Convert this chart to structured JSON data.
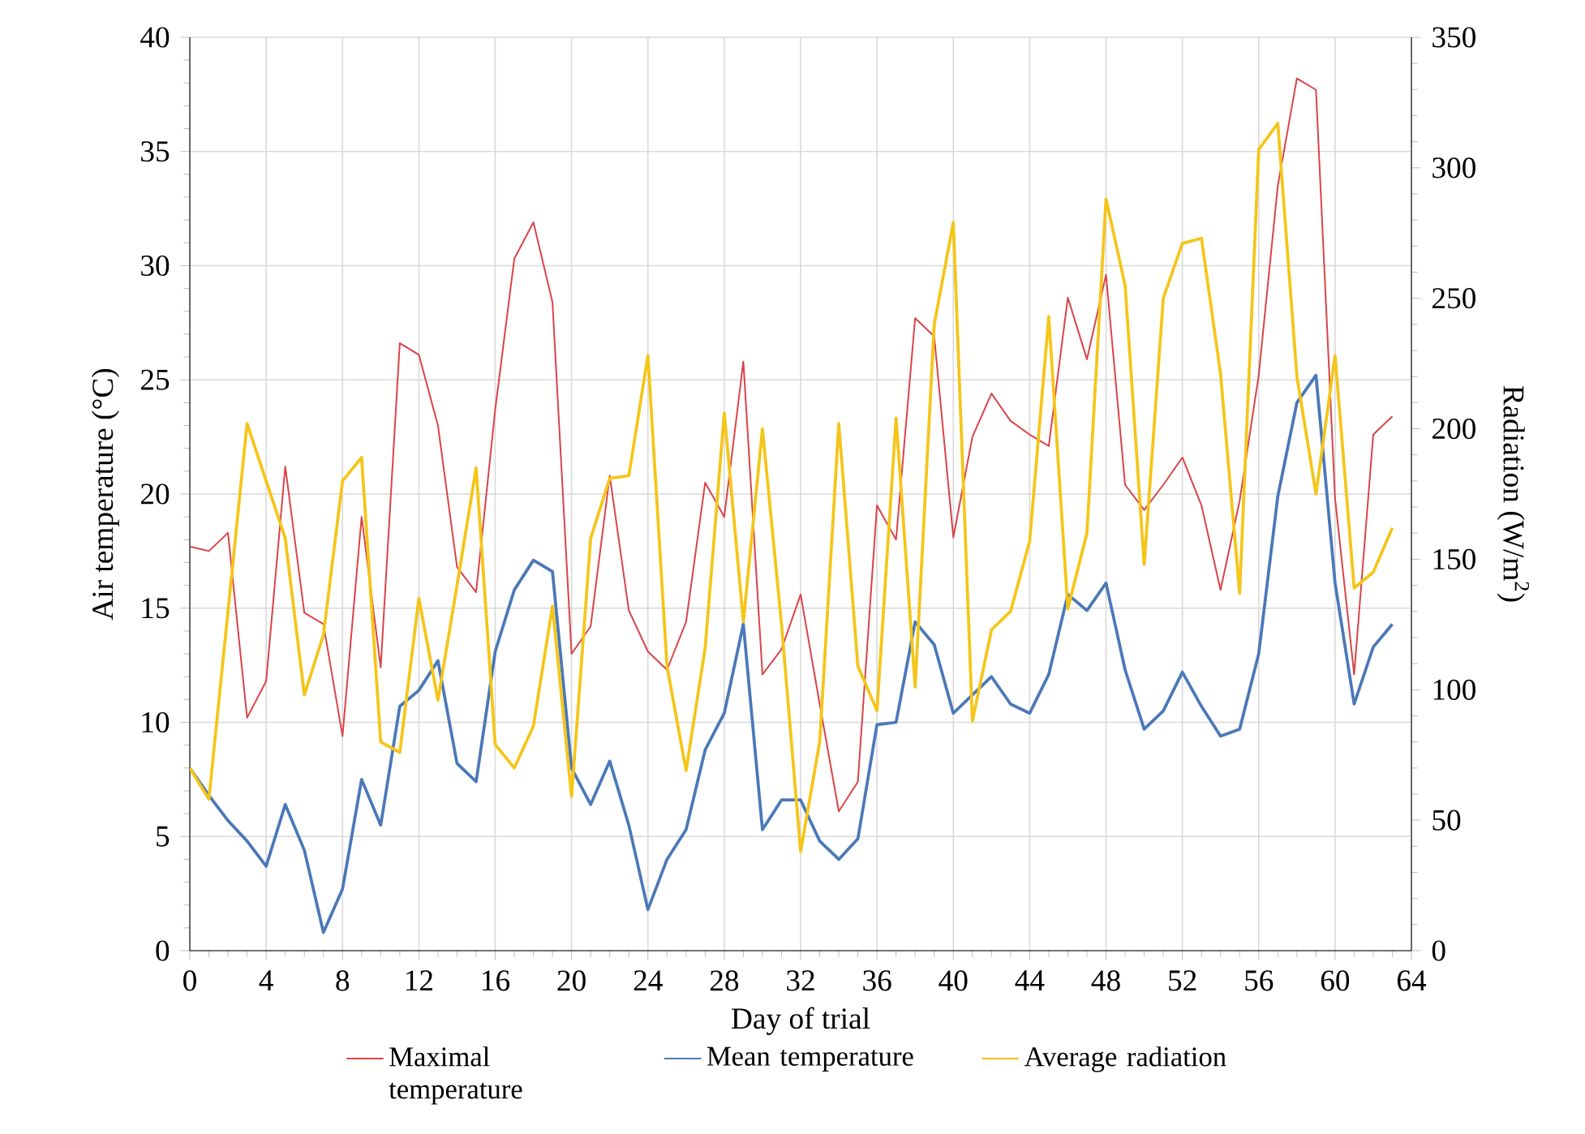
{
  "chart_data": {
    "type": "line",
    "xlabel": "Day of trial",
    "ylabel": "Air temperature (°C)",
    "y2label": "Radiation (W/m$^{2}$)",
    "x": [
      0,
      1,
      2,
      3,
      4,
      5,
      6,
      7,
      8,
      9,
      10,
      11,
      12,
      13,
      14,
      15,
      16,
      17,
      18,
      19,
      20,
      21,
      22,
      23,
      24,
      25,
      26,
      27,
      28,
      29,
      30,
      31,
      32,
      33,
      34,
      35,
      36,
      37,
      38,
      39,
      40,
      41,
      42,
      43,
      44,
      45,
      46,
      47,
      48,
      49,
      50,
      51,
      52,
      53,
      54,
      55,
      56,
      57,
      58,
      59,
      60,
      61,
      62,
      63
    ],
    "series": [
      {
        "name": "Maximal temperature",
        "color": "#d9444a",
        "values": [
          17.7,
          17.5,
          18.3,
          10.2,
          11.8,
          21.2,
          14.8,
          14.3,
          9.4,
          19.0,
          12.4,
          26.6,
          26.1,
          23.0,
          16.8,
          15.7,
          23.7,
          30.3,
          31.9,
          28.4,
          13.0,
          14.2,
          20.8,
          14.9,
          13.1,
          12.3,
          14.4,
          20.5,
          19.0,
          25.8,
          12.1,
          13.2,
          15.6,
          10.8,
          6.1,
          7.4,
          19.5,
          18.0,
          27.7,
          26.9,
          18.1,
          22.5,
          24.4,
          23.2,
          22.6,
          22.1,
          28.6,
          25.9,
          29.6,
          20.4,
          19.3,
          20.4,
          21.6,
          19.5,
          15.8,
          19.7,
          25.2,
          33.5,
          38.2,
          37.7,
          19.8,
          12.1,
          22.6,
          23.4
        ]
      },
      {
        "name": "Mean temperature",
        "color": "#4a78b8",
        "values": [
          8.0,
          6.8,
          5.7,
          4.8,
          3.7,
          6.4,
          4.4,
          0.8,
          2.7,
          7.5,
          5.5,
          10.7,
          11.4,
          12.7,
          8.2,
          7.4,
          13.1,
          15.8,
          17.1,
          16.6,
          8.0,
          6.4,
          8.3,
          5.5,
          1.8,
          4.0,
          5.3,
          8.8,
          10.4,
          14.3,
          5.3,
          6.6,
          6.6,
          4.8,
          4.0,
          4.9,
          9.9,
          10.0,
          14.4,
          13.4,
          10.4,
          11.2,
          12.0,
          10.8,
          10.4,
          12.1,
          15.6,
          14.9,
          16.1,
          12.3,
          9.7,
          10.5,
          12.2,
          10.7,
          9.4,
          9.7,
          13.0,
          19.9,
          24.0,
          25.2,
          16.1,
          10.8,
          13.3,
          14.3
        ]
      },
      {
        "name": "Average radiation",
        "color": "#f5c518",
        "axis": "y2",
        "values": [
          70,
          58,
          130,
          202,
          180,
          158,
          98,
          121,
          180,
          189,
          80,
          76,
          135,
          96,
          140,
          185,
          79,
          70,
          86,
          132,
          59,
          158,
          181,
          182,
          228,
          109,
          69,
          116,
          206,
          126,
          200,
          125,
          38,
          80,
          202,
          109,
          92,
          204,
          101,
          240,
          279,
          88,
          123,
          130,
          157,
          243,
          131,
          160,
          288,
          255,
          148,
          250,
          271,
          273,
          221,
          137,
          307,
          317,
          220,
          175,
          228,
          139,
          145,
          162
        ]
      }
    ],
    "xlim": [
      0,
      64
    ],
    "xticks": [
      0,
      4,
      8,
      12,
      16,
      20,
      24,
      28,
      32,
      36,
      40,
      44,
      48,
      52,
      56,
      60,
      64
    ],
    "ylim": [
      0,
      40
    ],
    "yticks": [
      0,
      5,
      10,
      15,
      20,
      25,
      30,
      35,
      40
    ],
    "y2lim": [
      0,
      350
    ],
    "y2ticks": [
      0,
      50,
      100,
      150,
      200,
      250,
      300,
      350
    ],
    "grid": true,
    "legend": "bottom"
  }
}
